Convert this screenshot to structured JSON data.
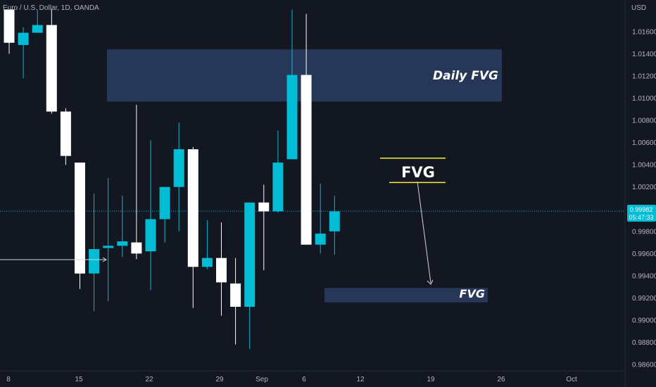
{
  "header": {
    "symbol": "Euro / U.S. Dollar, 1D, OANDA",
    "currency": "USD"
  },
  "price_tag": {
    "price": "0.99982",
    "countdown": "05:47:33"
  },
  "colors": {
    "bull": "#00bcd4",
    "bear": "#ffffff",
    "zone": "#2a3b5e",
    "bg": "#131722",
    "fvg_line": "#ffeb3b",
    "price_line": "#00bcd4"
  },
  "chart_data": {
    "type": "candlestick",
    "x_ticks": [
      "8",
      "15",
      "22",
      "29",
      "Sep",
      "6",
      "12",
      "19",
      "26",
      "Oct"
    ],
    "y_ticks": [
      "1.01600",
      "1.01400",
      "1.01200",
      "1.01000",
      "1.00800",
      "1.00600",
      "1.00400",
      "1.00200",
      "0.99800",
      "0.99600",
      "0.99400",
      "0.99200",
      "0.99000",
      "0.98800",
      "0.98600"
    ],
    "ylim": [
      0.9855,
      1.0178
    ],
    "candles": [
      {
        "dir": "bear",
        "o": 1.018,
        "h": 1.018,
        "c": 1.015,
        "l": 1.014
      },
      {
        "dir": "bull",
        "o": 1.0148,
        "h": 1.0164,
        "c": 1.0159,
        "l": 1.0118
      },
      {
        "dir": "bull",
        "o": 1.0159,
        "h": 1.018,
        "c": 1.0166,
        "l": 1.016
      },
      {
        "dir": "bear",
        "o": 1.0166,
        "h": 1.018,
        "c": 1.0088,
        "l": 1.0086
      },
      {
        "dir": "bear",
        "o": 1.0088,
        "h": 1.0091,
        "c": 1.0048,
        "l": 1.004
      },
      {
        "dir": "bear",
        "o": 1.0042,
        "h": 1.0042,
        "c": 0.9942,
        "l": 0.9928
      },
      {
        "dir": "bull",
        "o": 0.9942,
        "h": 1.0014,
        "c": 0.9964,
        "l": 0.9908
      },
      {
        "dir": "bull",
        "o": 0.9965,
        "h": 1.0028,
        "c": 0.9967,
        "l": 0.9917
      },
      {
        "dir": "bull",
        "o": 0.9967,
        "h": 1.0012,
        "c": 0.9971,
        "l": 0.9957
      },
      {
        "dir": "bear",
        "o": 0.997,
        "h": 1.0094,
        "c": 0.996,
        "l": 0.9955
      },
      {
        "dir": "bull",
        "o": 0.9962,
        "h": 1.0062,
        "c": 0.9991,
        "l": 0.9927
      },
      {
        "dir": "bull",
        "o": 0.9991,
        "h": 1.0017,
        "c": 1.002,
        "l": 0.997
      },
      {
        "dir": "bull",
        "o": 1.002,
        "h": 1.0078,
        "c": 1.0054,
        "l": 0.998
      },
      {
        "dir": "bear",
        "o": 1.0054,
        "h": 1.0056,
        "c": 0.9948,
        "l": 0.9911
      },
      {
        "dir": "bull",
        "o": 0.9948,
        "h": 0.999,
        "c": 0.9956,
        "l": 0.9946
      },
      {
        "dir": "bear",
        "o": 0.9956,
        "h": 0.9988,
        "c": 0.9934,
        "l": 0.9904
      },
      {
        "dir": "bear",
        "o": 0.9933,
        "h": 0.9956,
        "c": 0.9912,
        "l": 0.9878
      },
      {
        "dir": "bull",
        "o": 0.9912,
        "h": 1.0006,
        "c": 1.0006,
        "l": 0.9874
      },
      {
        "dir": "bear",
        "o": 1.0006,
        "h": 1.0022,
        "c": 0.9998,
        "l": 0.9945
      },
      {
        "dir": "bull",
        "o": 0.9998,
        "h": 1.0071,
        "c": 1.0042,
        "l": 0.9997
      },
      {
        "dir": "bull",
        "o": 1.0045,
        "h": 1.018,
        "c": 1.0121,
        "l": 1.0045
      },
      {
        "dir": "bear",
        "o": 1.0121,
        "h": 1.0176,
        "c": 0.9968,
        "l": 0.9968
      },
      {
        "dir": "bull",
        "o": 0.9968,
        "h": 1.0023,
        "c": 0.9978,
        "l": 0.996
      },
      {
        "dir": "bull",
        "o": 0.998,
        "h": 1.0012,
        "c": 0.9998,
        "l": 0.9959
      }
    ],
    "zones": [
      {
        "label": "Daily FVG",
        "top": 1.0144,
        "bottom": 1.0097
      },
      {
        "label": "FVG",
        "top": 0.9929,
        "bottom": 0.9916
      }
    ],
    "fvg_lines": [
      1.0046,
      1.0024
    ],
    "mid_label": "FVG",
    "current_price": 0.99982
  }
}
